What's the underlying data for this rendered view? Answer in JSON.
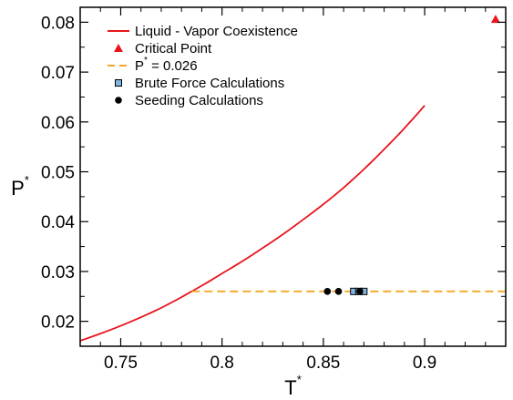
{
  "chart_data": {
    "type": "scatter",
    "xlabel": "T",
    "xlabel_sup": "*",
    "ylabel": "P",
    "ylabel_sup": "*",
    "xlim": [
      0.73,
      0.94
    ],
    "ylim": [
      0.015,
      0.083
    ],
    "x_ticks": [
      0.75,
      0.8,
      0.85,
      0.9
    ],
    "x_tick_labels": [
      "0.75",
      "0.8",
      "0.85",
      "0.9"
    ],
    "y_ticks": [
      0.02,
      0.03,
      0.04,
      0.05,
      0.06,
      0.07,
      0.08
    ],
    "y_tick_labels": [
      "0.02",
      "0.03",
      "0.04",
      "0.05",
      "0.06",
      "0.07",
      "0.08"
    ],
    "grid": false,
    "legend_position": "top-left",
    "series": [
      {
        "name": "Liquid - Vapor Coexistence",
        "kind": "line",
        "color": "#e8141c",
        "x": [
          0.73,
          0.75,
          0.77,
          0.785,
          0.8,
          0.82,
          0.84,
          0.86,
          0.88,
          0.9
        ],
        "y": [
          0.0161,
          0.0191,
          0.0227,
          0.026,
          0.0296,
          0.0347,
          0.0404,
          0.0468,
          0.0545,
          0.0633
        ]
      },
      {
        "name": "Critical Point",
        "kind": "marker",
        "marker": "triangle",
        "color": "#e8141c",
        "x": [
          0.935
        ],
        "y": [
          0.0806
        ]
      },
      {
        "name": "P",
        "name_sup": "*",
        "name_rest": " = 0.026",
        "kind": "dashed-line",
        "color": "#f5a623",
        "x": [
          0.785,
          0.94
        ],
        "y": [
          0.026,
          0.026
        ]
      },
      {
        "name": "Brute Force Calculations",
        "kind": "marker",
        "marker": "square",
        "color": "#7fb5e0",
        "x": [
          0.865,
          0.8675,
          0.87
        ],
        "y": [
          0.026,
          0.026,
          0.026
        ]
      },
      {
        "name": "Seeding Calculations",
        "kind": "marker",
        "marker": "circle",
        "color": "#000000",
        "x": [
          0.852,
          0.8575,
          0.868
        ],
        "y": [
          0.026,
          0.026,
          0.026
        ]
      }
    ]
  }
}
